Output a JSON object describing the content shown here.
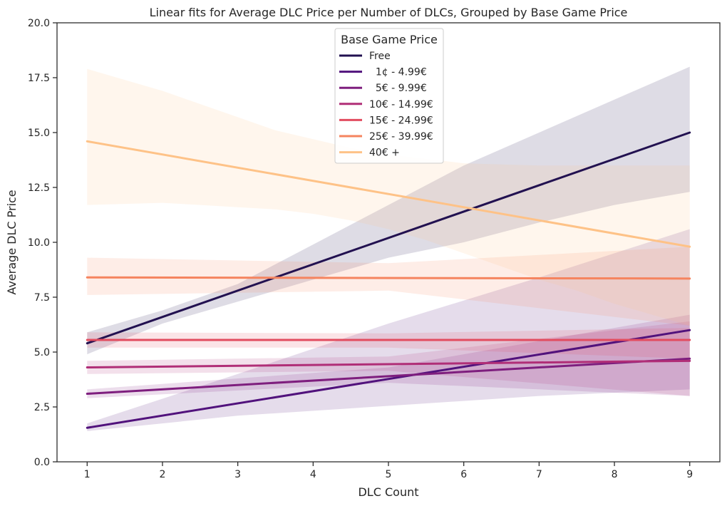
{
  "chart_data": {
    "type": "line",
    "title": "Linear fits for Average DLC Price per Number of DLCs, Grouped by Base Game Price",
    "xlabel": "DLC Count",
    "ylabel": "Average DLC Price",
    "xlim": [
      0.6,
      9.4
    ],
    "ylim": [
      0,
      20
    ],
    "xticks": [
      1,
      2,
      3,
      4,
      5,
      6,
      7,
      8,
      9
    ],
    "yticks": [
      "0.0",
      "2.5",
      "5.0",
      "7.5",
      "10.0",
      "12.5",
      "15.0",
      "17.5",
      "20.0"
    ],
    "grid": false,
    "legend": {
      "title": "Base Game Price",
      "placement": "top-center"
    },
    "series": [
      {
        "name": "Free",
        "color": "#221150",
        "x": [
          1,
          9
        ],
        "y": [
          5.4,
          15.0
        ],
        "ci_x": [
          1,
          2,
          3,
          4,
          5,
          6,
          7,
          8,
          9
        ],
        "ci_upper": [
          5.9,
          6.9,
          8.1,
          9.9,
          11.7,
          13.5,
          15.0,
          16.5,
          18.0
        ],
        "ci_lower": [
          4.9,
          6.3,
          7.3,
          8.3,
          9.3,
          10.0,
          10.9,
          11.7,
          12.3
        ]
      },
      {
        "name": "  1¢ - 4.99€",
        "color": "#51127c",
        "x": [
          1,
          9
        ],
        "y": [
          1.55,
          6.0
        ],
        "ci_x": [
          1,
          3,
          5,
          7,
          9
        ],
        "ci_upper": [
          1.75,
          4.0,
          6.3,
          8.4,
          10.6
        ],
        "ci_lower": [
          1.4,
          2.1,
          2.55,
          3.0,
          3.3
        ]
      },
      {
        "name": "  5€ - 9.99€",
        "color": "#7e1e7e",
        "x": [
          1,
          9
        ],
        "y": [
          3.1,
          4.7
        ],
        "ci_x": [
          1,
          5,
          9
        ],
        "ci_upper": [
          3.3,
          4.3,
          6.7
        ],
        "ci_lower": [
          2.9,
          3.6,
          3.0
        ]
      },
      {
        "name": "10€ - 14.99€",
        "color": "#b02e77",
        "x": [
          1,
          9
        ],
        "y": [
          4.3,
          4.6
        ],
        "ci_x": [
          1,
          5,
          9
        ],
        "ci_upper": [
          4.6,
          4.8,
          6.4
        ],
        "ci_lower": [
          4.0,
          4.15,
          3.0
        ]
      },
      {
        "name": "15€ - 24.99€",
        "color": "#e24c5f",
        "x": [
          1,
          9
        ],
        "y": [
          5.55,
          5.55
        ],
        "ci_x": [
          1,
          5,
          9
        ],
        "ci_upper": [
          5.9,
          5.85,
          6.1
        ],
        "ci_lower": [
          5.2,
          5.2,
          4.7
        ]
      },
      {
        "name": "25€ - 39.99€",
        "color": "#f5845f",
        "x": [
          1,
          9
        ],
        "y": [
          8.4,
          8.35
        ],
        "ci_x": [
          1,
          5,
          9
        ],
        "ci_upper": [
          9.3,
          9.05,
          9.8
        ],
        "ci_lower": [
          7.6,
          7.8,
          6.2
        ]
      },
      {
        "name": "40€ +",
        "color": "#fec287",
        "x": [
          1,
          9
        ],
        "y": [
          14.6,
          9.8
        ],
        "ci_x": [
          1,
          1.5,
          2,
          2.5,
          3,
          3.5,
          4,
          4.5,
          5,
          5.5,
          6,
          6.5,
          7,
          7.5,
          8,
          8.5,
          9
        ],
        "ci_upper": [
          17.9,
          17.4,
          16.9,
          16.3,
          15.7,
          15.1,
          14.7,
          14.3,
          14.0,
          13.8,
          13.6,
          13.55,
          13.5,
          13.5,
          13.5,
          13.5,
          13.5
        ],
        "ci_lower": [
          11.7,
          11.75,
          11.8,
          11.7,
          11.6,
          11.5,
          11.3,
          11.0,
          10.6,
          10.1,
          9.5,
          8.9,
          8.3,
          7.8,
          7.2,
          6.7,
          6.2
        ]
      }
    ]
  }
}
